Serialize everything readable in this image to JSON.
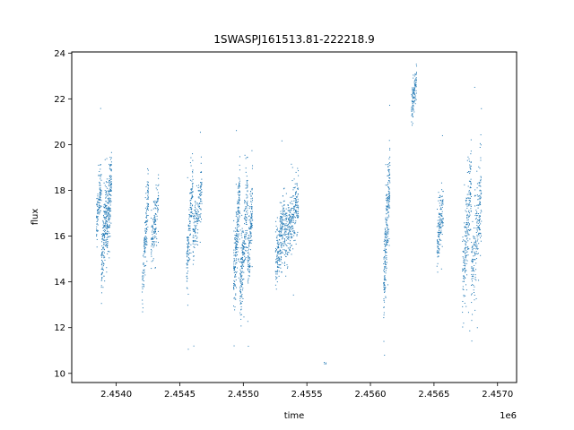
{
  "chart_data": {
    "type": "scatter",
    "title": "1SWASPJ161513.81-222218.9",
    "xlabel": "time",
    "ylabel": "flux",
    "x_offset_label": "1e6",
    "xlim": [
      2.45365,
      2.45715
    ],
    "ylim": [
      9.6,
      24.05
    ],
    "xticks": [
      2.454,
      2.4545,
      2.455,
      2.4555,
      2.456,
      2.4565,
      2.457
    ],
    "xtick_labels": [
      "2.4540",
      "2.4545",
      "2.4550",
      "2.4555",
      "2.4560",
      "2.4565",
      "2.4570"
    ],
    "yticks": [
      10,
      12,
      14,
      16,
      18,
      20,
      22,
      24
    ],
    "ytick_labels": [
      "10",
      "12",
      "14",
      "16",
      "18",
      "20",
      "22",
      "24"
    ],
    "grid": false,
    "marker_color": "#1f77b4",
    "clusters": [
      {
        "x": [
          2.45384,
          2.45388
        ],
        "y": [
          16.5,
          18.5
        ],
        "spread": 1.0,
        "n": 120
      },
      {
        "x": [
          2.45388,
          2.45392
        ],
        "y": [
          14.5,
          17.5
        ],
        "spread": 1.4,
        "n": 180
      },
      {
        "x": [
          2.45392,
          2.45396
        ],
        "y": [
          16.0,
          18.5
        ],
        "spread": 1.5,
        "n": 200
      },
      {
        "x": [
          2.4542,
          2.45425
        ],
        "y": [
          13.5,
          18.0
        ],
        "spread": 1.3,
        "n": 150
      },
      {
        "x": [
          2.45427,
          2.45433
        ],
        "y": [
          15.5,
          17.5
        ],
        "spread": 1.2,
        "n": 140
      },
      {
        "x": [
          2.45455,
          2.4546
        ],
        "y": [
          14.5,
          18.5
        ],
        "spread": 1.3,
        "n": 160
      },
      {
        "x": [
          2.4546,
          2.45467
        ],
        "y": [
          16.0,
          18.0
        ],
        "spread": 1.1,
        "n": 170
      },
      {
        "x": [
          2.45492,
          2.45497
        ],
        "y": [
          14.0,
          18.0
        ],
        "spread": 1.6,
        "n": 220
      },
      {
        "x": [
          2.45497,
          2.45503
        ],
        "y": [
          13.5,
          17.5
        ],
        "spread": 1.8,
        "n": 240
      },
      {
        "x": [
          2.45503,
          2.45507
        ],
        "y": [
          14.5,
          17.5
        ],
        "spread": 1.3,
        "n": 150
      },
      {
        "x": [
          2.45525,
          2.45532
        ],
        "y": [
          14.5,
          17.0
        ],
        "spread": 1.4,
        "n": 220
      },
      {
        "x": [
          2.45532,
          2.45543
        ],
        "y": [
          16.0,
          17.5
        ],
        "spread": 1.2,
        "n": 300
      },
      {
        "x": [
          2.45563,
          2.45565
        ],
        "y": [
          10.5,
          10.5
        ],
        "spread": 0.1,
        "n": 4
      },
      {
        "x": [
          2.4561,
          2.45615
        ],
        "y": [
          13.5,
          19.0
        ],
        "spread": 1.8,
        "n": 260
      },
      {
        "x": [
          2.45632,
          2.45636
        ],
        "y": [
          21.5,
          23.0
        ],
        "spread": 0.8,
        "n": 110
      },
      {
        "x": [
          2.45652,
          2.45657
        ],
        "y": [
          15.5,
          17.5
        ],
        "spread": 1.2,
        "n": 150
      },
      {
        "x": [
          2.45672,
          2.45679
        ],
        "y": [
          14.0,
          18.5
        ],
        "spread": 1.8,
        "n": 220
      },
      {
        "x": [
          2.45679,
          2.45687
        ],
        "y": [
          14.0,
          18.0
        ],
        "spread": 1.9,
        "n": 230
      }
    ]
  }
}
